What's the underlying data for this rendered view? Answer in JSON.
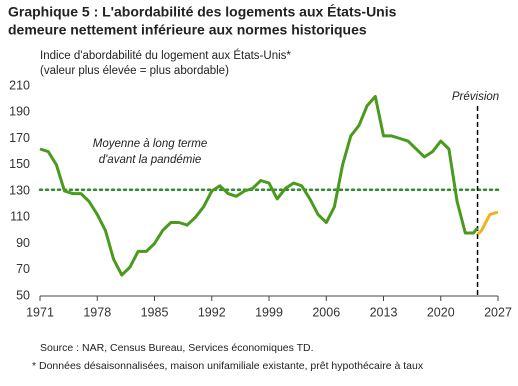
{
  "chart_data": {
    "type": "line",
    "title": [
      "Graphique 5 : L'abordabilité des logements aux États-Unis",
      "demeure nettement inférieure aux normes historiques"
    ],
    "subtitle": [
      "Indice d'abordabilité du logement aux États-Unis*",
      "(valeur plus élevée = plus abordable)"
    ],
    "x": [
      1971,
      1972,
      1973,
      1974,
      1975,
      1976,
      1977,
      1978,
      1979,
      1980,
      1981,
      1982,
      1983,
      1984,
      1985,
      1986,
      1987,
      1988,
      1989,
      1990,
      1991,
      1992,
      1993,
      1994,
      1995,
      1996,
      1997,
      1998,
      1999,
      2000,
      2001,
      2002,
      2003,
      2004,
      2005,
      2006,
      2007,
      2008,
      2009,
      2010,
      2011,
      2012,
      2013,
      2014,
      2015,
      2016,
      2017,
      2018,
      2019,
      2020,
      2021,
      2022,
      2023,
      2024,
      2024.5,
      2025,
      2025.5,
      2026,
      2026.5,
      2027
    ],
    "series": [
      {
        "name": "Indice",
        "color": "#4a9a1e",
        "values": [
          162,
          160,
          150,
          130,
          128,
          128,
          122,
          112,
          100,
          78,
          66,
          72,
          84,
          84,
          90,
          100,
          106,
          106,
          104,
          110,
          118,
          130,
          134,
          128,
          126,
          130,
          132,
          138,
          136,
          124,
          132,
          136,
          134,
          124,
          112,
          106,
          118,
          150,
          172,
          180,
          195,
          202,
          172,
          172,
          170,
          168,
          162,
          156,
          160,
          168,
          162,
          122,
          98,
          98,
          102,
          null,
          null,
          null,
          null,
          null
        ]
      },
      {
        "name": "Prévision",
        "color": "#f0b323",
        "values": [
          null,
          null,
          null,
          null,
          null,
          null,
          null,
          null,
          null,
          null,
          null,
          null,
          null,
          null,
          null,
          null,
          null,
          null,
          null,
          null,
          null,
          null,
          null,
          null,
          null,
          null,
          null,
          null,
          null,
          null,
          null,
          null,
          null,
          null,
          null,
          null,
          null,
          null,
          null,
          null,
          null,
          null,
          null,
          null,
          null,
          null,
          null,
          null,
          null,
          null,
          null,
          null,
          null,
          null,
          97,
          100,
          106,
          112,
          113,
          114
        ]
      }
    ],
    "average": {
      "value": 131,
      "label": [
        "Moyenne à long terme",
        "d'avant la pandémie"
      ],
      "color": "#2e8b2e"
    },
    "forecast": {
      "x": 2024.5,
      "label": "Prévision"
    },
    "xlim": [
      1971,
      2027
    ],
    "xticks": [
      1971,
      1978,
      1985,
      1992,
      1999,
      2006,
      2013,
      2020,
      2027
    ],
    "ylim": [
      50,
      210
    ],
    "yticks": [
      50,
      70,
      90,
      110,
      130,
      150,
      170,
      190,
      210
    ],
    "notes": [
      "Source : NAR, Census Bureau, Services économiques TD.",
      "* Données désaisonnalisées,  maison unifamiliale existante, prêt hypothécaire à taux"
    ]
  }
}
